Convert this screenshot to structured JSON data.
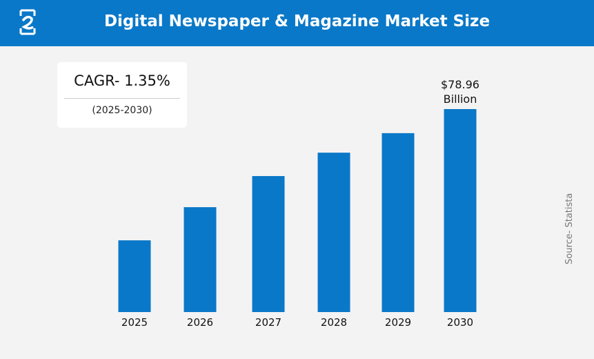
{
  "header": {
    "title": "Digital Newspaper & Magazine Market Size"
  },
  "cagr": {
    "label": "CAGR- 1.35%",
    "period": "(2025-2030)"
  },
  "source": "Source- Statista",
  "chart_data": {
    "type": "bar",
    "categories": [
      "2025",
      "2026",
      "2027",
      "2028",
      "2029",
      "2030"
    ],
    "values": [
      27.9,
      40.8,
      52.9,
      62.0,
      69.6,
      78.96
    ],
    "value_label": {
      "category": "2030",
      "line1": "$78.96",
      "line2": "Billion"
    },
    "unit": "Billion USD",
    "ylim": [
      0,
      78.96
    ],
    "grid": false,
    "bar_color": "#0a78c8",
    "header_color": "#0a78c8"
  }
}
